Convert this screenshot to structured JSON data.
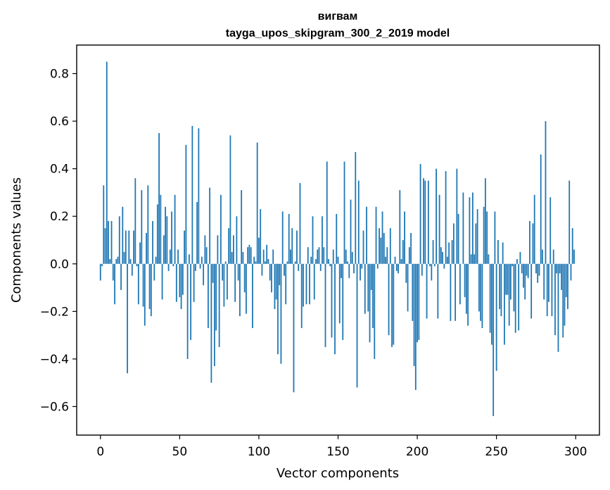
{
  "chart_data": {
    "type": "bar",
    "title": "вигвам",
    "subtitle": "tayga_upos_skipgram_300_2_2019 model",
    "xlabel": "Vector components",
    "ylabel": "Components values",
    "xlim": [
      -15,
      315
    ],
    "ylim": [
      -0.72,
      0.92
    ],
    "xticks": [
      0,
      50,
      100,
      150,
      200,
      250,
      300
    ],
    "xtick_labels": [
      "0",
      "50",
      "100",
      "150",
      "200",
      "250",
      "300"
    ],
    "yticks": [
      -0.6,
      -0.4,
      -0.2,
      0.0,
      0.2,
      0.4,
      0.6,
      0.8
    ],
    "ytick_labels": [
      "−0.6",
      "−0.4",
      "−0.2",
      "0.0",
      "0.2",
      "0.4",
      "0.6",
      "0.8"
    ],
    "bar_color": "#1f77b4",
    "grid": false,
    "x": "0..299 (component index)",
    "values": [
      -0.07,
      -0.01,
      0.33,
      0.15,
      0.85,
      0.18,
      0.02,
      0.18,
      -0.07,
      -0.17,
      0.02,
      0.03,
      0.2,
      -0.11,
      0.24,
      0.05,
      0.14,
      -0.46,
      0.14,
      0.02,
      -0.05,
      0.14,
      0.36,
      -0.01,
      -0.17,
      0.09,
      0.31,
      -0.18,
      -0.26,
      0.13,
      0.33,
      -0.19,
      -0.22,
      0.18,
      -0.07,
      0.03,
      0.25,
      0.55,
      0.29,
      -0.15,
      0.12,
      0.24,
      0.2,
      -0.03,
      0.06,
      0.22,
      -0.01,
      0.29,
      -0.16,
      0.06,
      -0.14,
      -0.19,
      -0.13,
      0.14,
      0.5,
      -0.4,
      0.04,
      -0.32,
      0.58,
      -0.16,
      -0.03,
      0.26,
      0.57,
      -0.02,
      0.03,
      -0.09,
      0.12,
      0.07,
      -0.27,
      0.32,
      -0.5,
      -0.08,
      -0.43,
      -0.28,
      0.12,
      -0.35,
      0.29,
      -0.07,
      -0.18,
      0.01,
      -0.15,
      0.15,
      0.54,
      0.05,
      0.12,
      -0.16,
      0.2,
      -0.07,
      -0.22,
      0.31,
      0.05,
      -0.12,
      -0.21,
      0.07,
      0.08,
      0.07,
      -0.27,
      0.03,
      0.01,
      0.51,
      0.11,
      0.23,
      -0.05,
      0.06,
      0.01,
      0.08,
      0.02,
      -0.07,
      -0.12,
      0.06,
      -0.19,
      -0.15,
      -0.38,
      -0.09,
      -0.42,
      0.22,
      -0.05,
      -0.17,
      0.01,
      0.21,
      0.06,
      0.15,
      -0.54,
      0.01,
      0.14,
      -0.03,
      0.34,
      -0.27,
      -0.18,
      0.0,
      -0.17,
      0.07,
      -0.17,
      0.03,
      0.2,
      -0.15,
      0.02,
      0.06,
      0.07,
      -0.03,
      0.2,
      0.07,
      -0.35,
      0.43,
      0.02,
      -0.01,
      -0.31,
      0.06,
      -0.38,
      0.21,
      0.03,
      -0.25,
      -0.06,
      -0.32,
      0.43,
      0.06,
      0.01,
      -0.06,
      0.27,
      0.05,
      -0.04,
      0.47,
      -0.52,
      0.35,
      -0.07,
      -0.02,
      0.14,
      -0.21,
      0.24,
      -0.2,
      -0.33,
      -0.11,
      -0.27,
      -0.4,
      0.24,
      -0.02,
      0.15,
      0.11,
      0.22,
      0.13,
      0.03,
      0.07,
      -0.3,
      0.15,
      -0.35,
      -0.34,
      0.03,
      -0.03,
      -0.04,
      0.31,
      0.02,
      0.1,
      0.22,
      -0.08,
      -0.2,
      0.07,
      0.13,
      -0.24,
      -0.43,
      -0.53,
      -0.33,
      -0.32,
      0.42,
      -0.05,
      0.36,
      0.35,
      -0.23,
      0.35,
      -0.01,
      -0.07,
      0.1,
      -0.01,
      0.4,
      -0.23,
      0.29,
      0.07,
      0.05,
      -0.02,
      0.39,
      0.03,
      0.09,
      -0.24,
      0.1,
      0.17,
      -0.24,
      0.4,
      0.21,
      -0.17,
      0.0,
      0.3,
      -0.14,
      -0.21,
      -0.26,
      0.28,
      0.04,
      0.3,
      0.04,
      0.17,
      0.23,
      -0.2,
      -0.24,
      -0.27,
      0.24,
      0.36,
      0.22,
      0.04,
      -0.29,
      -0.34,
      -0.64,
      0.22,
      -0.45,
      0.1,
      -0.19,
      -0.22,
      0.09,
      -0.34,
      -0.13,
      -0.13,
      -0.26,
      -0.15,
      -0.01,
      -0.2,
      -0.29,
      0.02,
      -0.28,
      0.05,
      -0.04,
      -0.1,
      -0.15,
      -0.05,
      -0.06,
      0.18,
      -0.23,
      0.17,
      0.29,
      -0.04,
      -0.08,
      -0.05,
      0.46,
      0.06,
      -0.15,
      0.6,
      -0.22,
      -0.16,
      0.28,
      -0.22,
      0.06,
      -0.3,
      -0.04,
      -0.37,
      -0.04,
      -0.11,
      -0.31,
      -0.26,
      -0.14,
      -0.19,
      0.35,
      -0.07,
      0.15,
      0.06
    ]
  }
}
